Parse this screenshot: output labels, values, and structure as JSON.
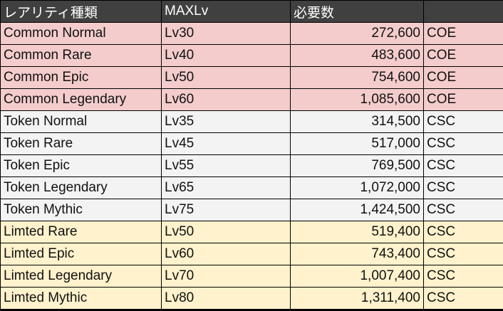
{
  "headers": [
    "レアリティ種類",
    "MAXLv",
    "必要数",
    ""
  ],
  "rows": [
    {
      "group": "c",
      "rarity": "Common Normal",
      "maxlv": "Lv30",
      "required": "272,600",
      "currency": "COE"
    },
    {
      "group": "c",
      "rarity": "Common Rare",
      "maxlv": "Lv40",
      "required": "483,600",
      "currency": "COE"
    },
    {
      "group": "c",
      "rarity": "Common Epic",
      "maxlv": "Lv50",
      "required": "754,600",
      "currency": "COE"
    },
    {
      "group": "c",
      "rarity": "Common Legendary",
      "maxlv": "Lv60",
      "required": "1,085,600",
      "currency": "COE"
    },
    {
      "group": "t",
      "rarity": "Token Normal",
      "maxlv": "Lv35",
      "required": "314,500",
      "currency": "CSC"
    },
    {
      "group": "t",
      "rarity": "Token Rare",
      "maxlv": "Lv45",
      "required": "517,000",
      "currency": "CSC"
    },
    {
      "group": "t",
      "rarity": "Token Epic",
      "maxlv": "Lv55",
      "required": "769,500",
      "currency": "CSC"
    },
    {
      "group": "t",
      "rarity": "Token Legendary",
      "maxlv": "Lv65",
      "required": "1,072,000",
      "currency": "CSC"
    },
    {
      "group": "t",
      "rarity": "Token Mythic",
      "maxlv": "Lv75",
      "required": "1,424,500",
      "currency": "CSC"
    },
    {
      "group": "l",
      "rarity": "Limted Rare",
      "maxlv": "Lv50",
      "required": "519,400",
      "currency": "CSC"
    },
    {
      "group": "l",
      "rarity": "Limted Epic",
      "maxlv": "Lv60",
      "required": "743,400",
      "currency": "CSC"
    },
    {
      "group": "l",
      "rarity": "Limted Legendary",
      "maxlv": "Lv70",
      "required": "1,007,400",
      "currency": "CSC"
    },
    {
      "group": "l",
      "rarity": "Limted Mythic",
      "maxlv": "Lv80",
      "required": "1,311,400",
      "currency": "CSC"
    }
  ],
  "colors": {
    "header_bg": "#404040",
    "common_bg": "#f4cccc",
    "token_bg": "#f3f3f3",
    "limited_bg": "#fff2cc",
    "grid_line": "#000000"
  }
}
